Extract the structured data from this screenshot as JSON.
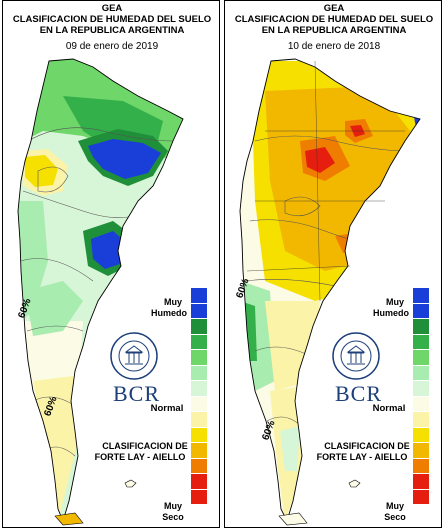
{
  "maps": [
    {
      "org": "GEA",
      "title_line1": "CLASIFICACION DE HUMEDAD DEL SUELO",
      "title_line2": "EN LA REPUBLICA ARGENTINA",
      "date": "09 de enero de 2019",
      "contour_label": "60%"
    },
    {
      "org": "GEA",
      "title_line1": "CLASIFICACION DE HUMEDAD DEL SUELO",
      "title_line2": "EN LA REPUBLICA ARGENTINA",
      "date": "10 de enero de 2018",
      "contour_label": "60%"
    }
  ],
  "legend": {
    "wet_label_1": "Muy",
    "wet_label_2": "Humedo",
    "normal_label": "Normal",
    "dry_label_1": "Muy",
    "dry_label_2": "Seco",
    "method_line1": "CLASIFICACION DE",
    "method_line2": "FORTE LAY - AIELLO",
    "colors": [
      "#1a3fd8",
      "#1f8f3a",
      "#34b04a",
      "#6fd66a",
      "#a8ecb0",
      "#d7f5d7",
      "#fbfbe6",
      "#fbf3a8",
      "#f5e000",
      "#f2b800",
      "#ef7d00",
      "#e61e10"
    ]
  },
  "brand": {
    "logo_text": "BCR",
    "seal_text": "BOLSA DE COMERCIO DE ROSARIO"
  }
}
